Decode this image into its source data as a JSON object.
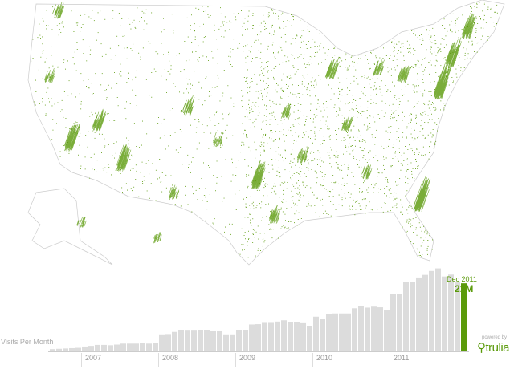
{
  "map": {
    "type": "dot-density map",
    "region": "United States",
    "dot_color": "#5a9a0a",
    "outline_color": "#cccccc"
  },
  "chart_data": {
    "type": "bar",
    "ylabel": "Visits Per Month",
    "unit": "M",
    "highlight": {
      "label": "Dec 2011",
      "value_label": "21M",
      "color": "#5a9a0a"
    },
    "bar_color": "#dcdcdc",
    "tick_labels": [
      "2007",
      "2008",
      "2009",
      "2010",
      "2011"
    ],
    "start": "2006-08",
    "end": "2011-12",
    "values": [
      0.7,
      0.8,
      0.9,
      1.0,
      1.1,
      1.5,
      1.7,
      2.0,
      2.0,
      1.9,
      2.1,
      2.4,
      2.4,
      2.4,
      2.7,
      2.4,
      2.7,
      5.0,
      5.1,
      6.0,
      6.5,
      6.4,
      6.4,
      6.6,
      6.6,
      6.2,
      6.2,
      5.0,
      5.0,
      6.6,
      6.6,
      8.3,
      8.4,
      8.8,
      8.8,
      9.2,
      9.6,
      9.1,
      9.0,
      8.7,
      7.9,
      10.7,
      9.9,
      11.6,
      11.7,
      11.7,
      11.7,
      13.3,
      14.1,
      13.5,
      13.8,
      13.6,
      12.7,
      17.7,
      17.7,
      21.5,
      21.3,
      22.8,
      23.6,
      24.8,
      25.6,
      23.1,
      23.7,
      21.6,
      21.0
    ]
  },
  "branding": {
    "powered_by": "powered by",
    "logo": "trulia"
  }
}
